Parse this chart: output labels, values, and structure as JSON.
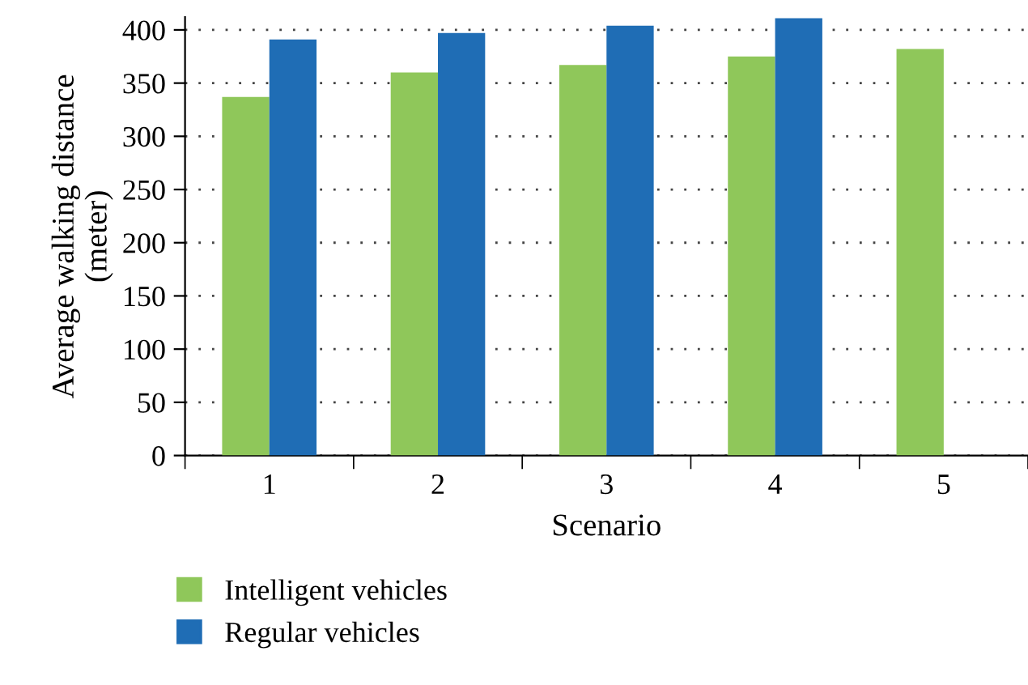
{
  "chart_data": {
    "type": "bar",
    "xlabel": "Scenario",
    "ylabel": "Average walking distance\n(meter)",
    "categories": [
      "1",
      "2",
      "3",
      "4",
      "5"
    ],
    "series": [
      {
        "name": "Intelligent vehicles",
        "color": "#8fc75a",
        "values": [
          337,
          360,
          367,
          375,
          382
        ]
      },
      {
        "name": "Regular vehicles",
        "color": "#1f6db5",
        "values": [
          391,
          397,
          404,
          411,
          null
        ]
      }
    ],
    "ylim": [
      0,
      412
    ],
    "yticks": [
      0,
      50,
      100,
      150,
      200,
      250,
      300,
      350,
      400
    ],
    "grid": "y",
    "legend": "bottom left"
  }
}
